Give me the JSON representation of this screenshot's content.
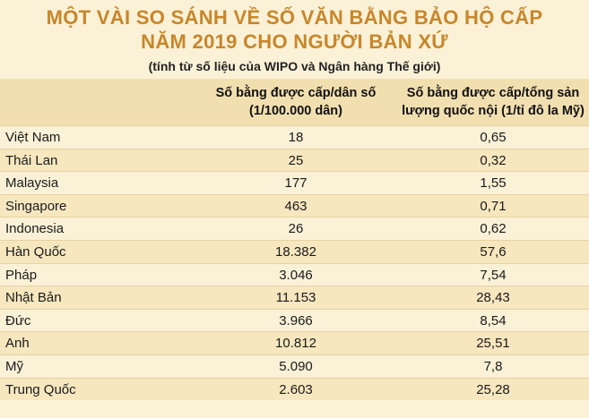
{
  "title_line1": "MỘT VÀI SO SÁNH VỀ SỐ VĂN BẰNG BẢO HỘ CẤP",
  "title_line2": "NĂM 2019 CHO NGƯỜI BẢN XỨ",
  "subtitle": "(tính từ số liệu của WIPO và Ngân hàng Thế giới)",
  "chart_data": {
    "type": "table",
    "columns": [
      {
        "line1": "Số bằng được cấp/dân số",
        "line2": "(1/100.000 dân)"
      },
      {
        "line1": "Số bằng được cấp/tổng sản",
        "line2": "lượng quốc nội (1/tỉ đô la Mỹ)"
      }
    ],
    "rows": [
      {
        "country": "Việt Nam",
        "per_population": "18",
        "per_gdp": "0,65"
      },
      {
        "country": "Thái Lan",
        "per_population": "25",
        "per_gdp": "0,32"
      },
      {
        "country": "Malaysia",
        "per_population": "177",
        "per_gdp": "1,55"
      },
      {
        "country": "Singapore",
        "per_population": "463",
        "per_gdp": "0,71"
      },
      {
        "country": "Indonesia",
        "per_population": "26",
        "per_gdp": "0,62"
      },
      {
        "country": "Hàn Quốc",
        "per_population": "18.382",
        "per_gdp": "57,6"
      },
      {
        "country": "Pháp",
        "per_population": "3.046",
        "per_gdp": "7,54"
      },
      {
        "country": "Nhật Bản",
        "per_population": "11.153",
        "per_gdp": "28,43"
      },
      {
        "country": "Đức",
        "per_population": "3.966",
        "per_gdp": "8,54"
      },
      {
        "country": "Anh",
        "per_population": "10.812",
        "per_gdp": "25,51"
      },
      {
        "country": "Mỹ",
        "per_population": "5.090",
        "per_gdp": "7,8"
      },
      {
        "country": "Trung Quốc",
        "per_population": "2.603",
        "per_gdp": "25,28"
      }
    ]
  }
}
